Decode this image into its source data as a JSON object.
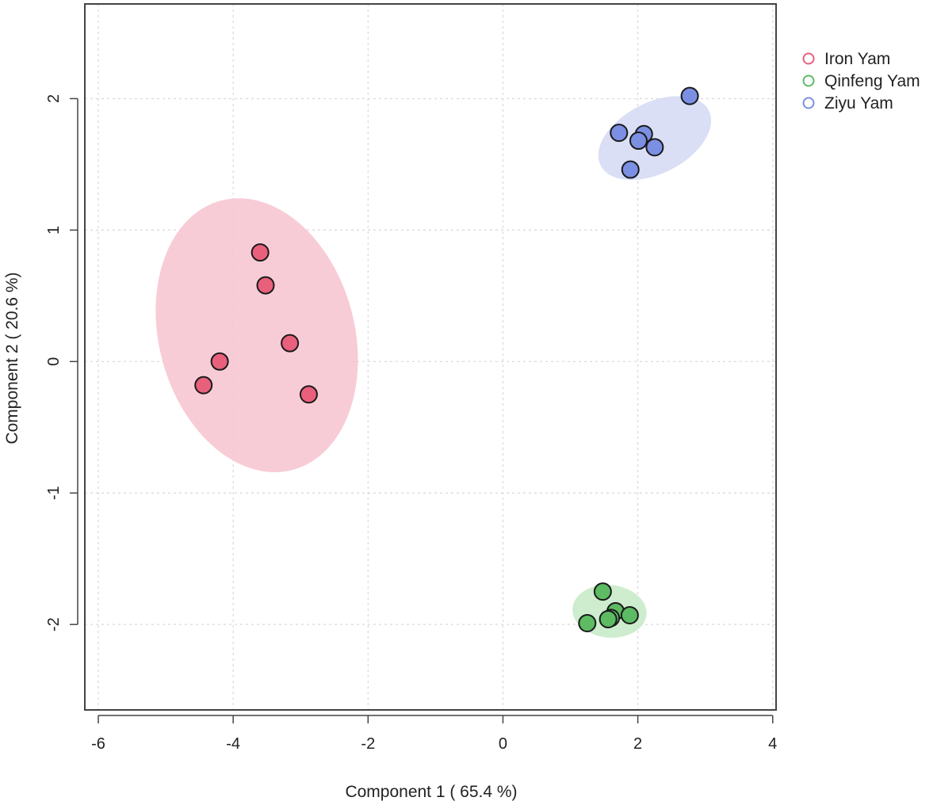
{
  "chart_data": {
    "type": "scatter",
    "title": "",
    "xlabel": "Component 1 ( 65.4 %)",
    "ylabel": "Component 2 ( 20.6 %)",
    "xlim": [
      -6.2,
      4.05
    ],
    "ylim": [
      -2.65,
      2.72
    ],
    "x_ticks": [
      -6,
      -4,
      -2,
      0,
      2,
      4
    ],
    "y_ticks": [
      -2,
      -1,
      0,
      1,
      2
    ],
    "x_tick_labels": [
      "-6",
      "-4",
      "-2",
      "0",
      "2",
      "4"
    ],
    "y_tick_labels": [
      "-2",
      "-1",
      "0",
      "1",
      "2"
    ],
    "grid": true,
    "legend_position": "top-right (outside plot)",
    "series": [
      {
        "name": "Iron Yam",
        "color": "#e8607c",
        "ellipse_color": "#f7c6d1",
        "ellipse": {
          "cx": -3.65,
          "cy": 0.2,
          "rx": 1.45,
          "ry": 1.06,
          "angle_deg": 15
        },
        "points": [
          {
            "x": -3.6,
            "y": 0.83
          },
          {
            "x": -3.52,
            "y": 0.58
          },
          {
            "x": -3.16,
            "y": 0.14
          },
          {
            "x": -4.2,
            "y": 0.0
          },
          {
            "x": -4.44,
            "y": -0.18
          },
          {
            "x": -2.88,
            "y": -0.25
          }
        ]
      },
      {
        "name": "Qinfeng Yam",
        "color": "#5dbb63",
        "ellipse_color": "#c9eac9",
        "ellipse": {
          "cx": 1.58,
          "cy": -1.9,
          "rx": 0.55,
          "ry": 0.2,
          "angle_deg": -5
        },
        "points": [
          {
            "x": 1.48,
            "y": -1.75
          },
          {
            "x": 1.67,
            "y": -1.9
          },
          {
            "x": 1.88,
            "y": -1.93
          },
          {
            "x": 1.6,
            "y": -1.95
          },
          {
            "x": 1.56,
            "y": -1.96
          },
          {
            "x": 1.25,
            "y": -1.99
          }
        ]
      },
      {
        "name": "Ziyu Yam",
        "color": "#7b8fe3",
        "ellipse_color": "#d6dbf5",
        "ellipse": {
          "cx": 2.25,
          "cy": 1.7,
          "rx": 0.9,
          "ry": 0.27,
          "angle_deg": 27
        },
        "points": [
          {
            "x": 2.77,
            "y": 2.02
          },
          {
            "x": 1.72,
            "y": 1.74
          },
          {
            "x": 2.09,
            "y": 1.73
          },
          {
            "x": 2.01,
            "y": 1.68
          },
          {
            "x": 2.25,
            "y": 1.63
          },
          {
            "x": 1.89,
            "y": 1.46
          }
        ]
      }
    ]
  }
}
